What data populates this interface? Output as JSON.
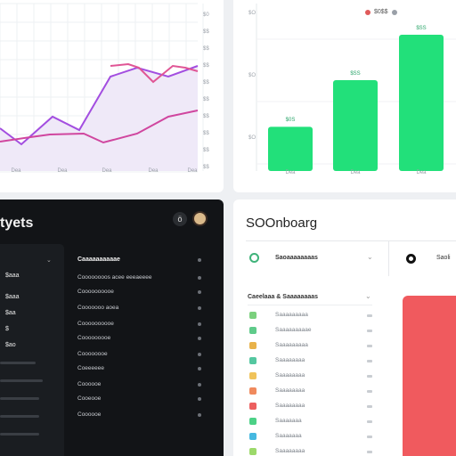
{
  "line_chart": {
    "x_ticks": [
      "Dea",
      "Dea",
      "Dea",
      "Dea",
      "Dea"
    ],
    "y_ticks": [
      "$0",
      "$$",
      "$$",
      "$$",
      "$$",
      "$$",
      "$$",
      "$$",
      "$$",
      "$$"
    ],
    "colors": {
      "line_a": "#a34ee0",
      "line_b": "#d0469f",
      "line_c": "#e05595",
      "fill": "#efe9f8"
    }
  },
  "bar_chart": {
    "categories": [
      "Dea",
      "Dea",
      "Dea"
    ],
    "values": [
      35,
      72,
      108
    ],
    "value_labels": [
      "$0S",
      "$SS",
      "$SS"
    ],
    "y_ticks": [
      "$O",
      "$O",
      "$O"
    ],
    "bar_color": "#22e07a",
    "top_row": {
      "label": "$0$$",
      "icon_a": "red-dot",
      "icon_b": "grey-dot"
    }
  },
  "dark_panel": {
    "title": "tyets",
    "bell_icon": "ö",
    "sidebar": {
      "items": [
        "$aaa",
        "$aaa",
        "$aa",
        "$",
        "$ao"
      ],
      "chevron": "⌄"
    },
    "rows": [
      "Caaaaaaaaaae",
      "Coooooooos acee eeeaeeee",
      "Coooooooooe",
      "Cooooooo aoea",
      "Coooooooooe",
      "Cooooooooe",
      "Coooooooe",
      "Coeeeeee",
      "Coooooe",
      "Cooeooe",
      "Coooooe"
    ]
  },
  "light_panel": {
    "title": "SOOnboarg",
    "dropdown_label": "Saoaaaaaaaas",
    "dropdown_chevron": "⌄",
    "right_label": "Saoli",
    "section_title": "Caeelaaa & Saaaaaaaas",
    "section_chevron": "⌄",
    "rows": [
      "Saaaaaaaaa",
      "Saaaaaaaaae",
      "Saaaaaaaaa",
      "Saaaaaaaa",
      "Saaaaaaaa",
      "Saaaaaaaa",
      "Saaaaaaaa",
      "Saaaaaaa",
      "Saaaaaaa",
      "Saaaaaaaa"
    ],
    "row_colors": [
      "#7bd07e",
      "#5fcb8a",
      "#e8b24a",
      "#54c7a0",
      "#f0c35a",
      "#f08a5d",
      "#ec5f5f",
      "#4cd186",
      "#46b8e0",
      "#9cd96a"
    ],
    "red_block_color": "#f05a5e"
  }
}
